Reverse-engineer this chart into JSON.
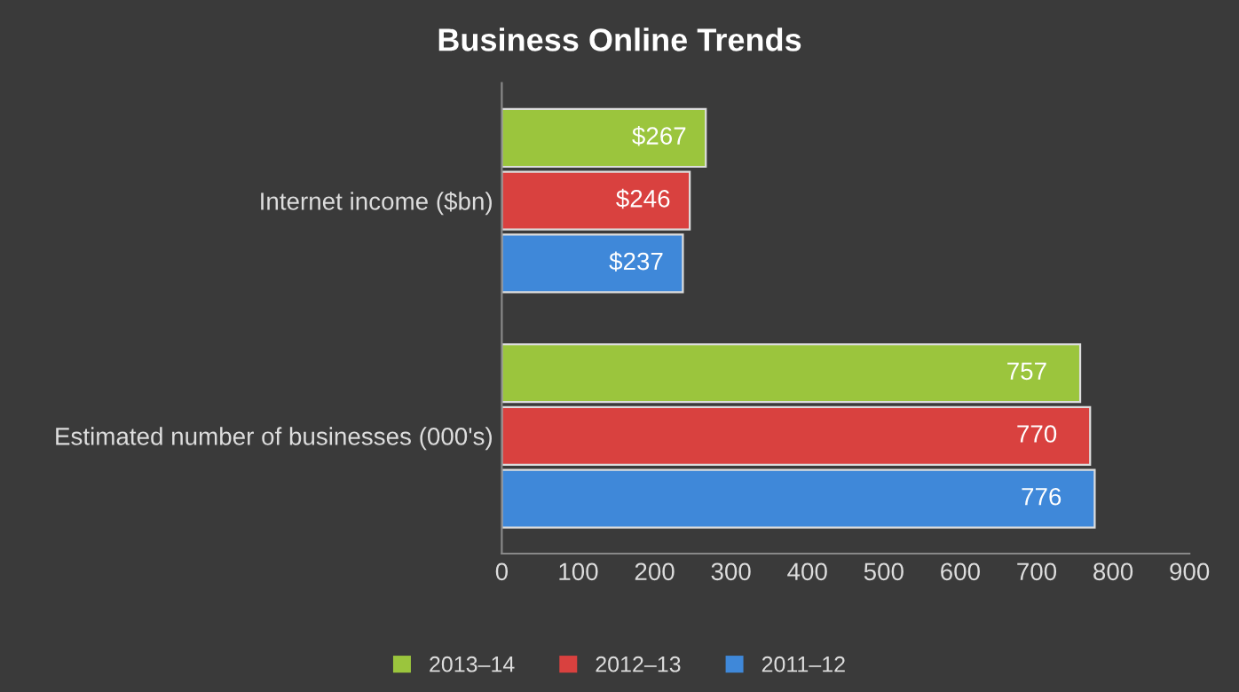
{
  "chart_data": {
    "type": "bar",
    "orientation": "horizontal",
    "title": "Business Online Trends",
    "categories": [
      "Internet income ($bn)",
      "Estimated number of businesses (000's)"
    ],
    "series": [
      {
        "name": "2013–14",
        "color": "#9bc53d",
        "values": [
          267,
          757
        ],
        "value_labels": [
          "$267",
          "757"
        ]
      },
      {
        "name": "2012–13",
        "color": "#d9413f",
        "values": [
          246,
          770
        ],
        "value_labels": [
          "$246",
          "770"
        ]
      },
      {
        "name": "2011–12",
        "color": "#3f88d9",
        "values": [
          237,
          776
        ],
        "value_labels": [
          "$237",
          "776"
        ]
      }
    ],
    "xlim": [
      0,
      900
    ],
    "xticks": [
      0,
      100,
      200,
      300,
      400,
      500,
      600,
      700,
      800,
      900
    ],
    "grid": false,
    "legend": "bottom"
  }
}
